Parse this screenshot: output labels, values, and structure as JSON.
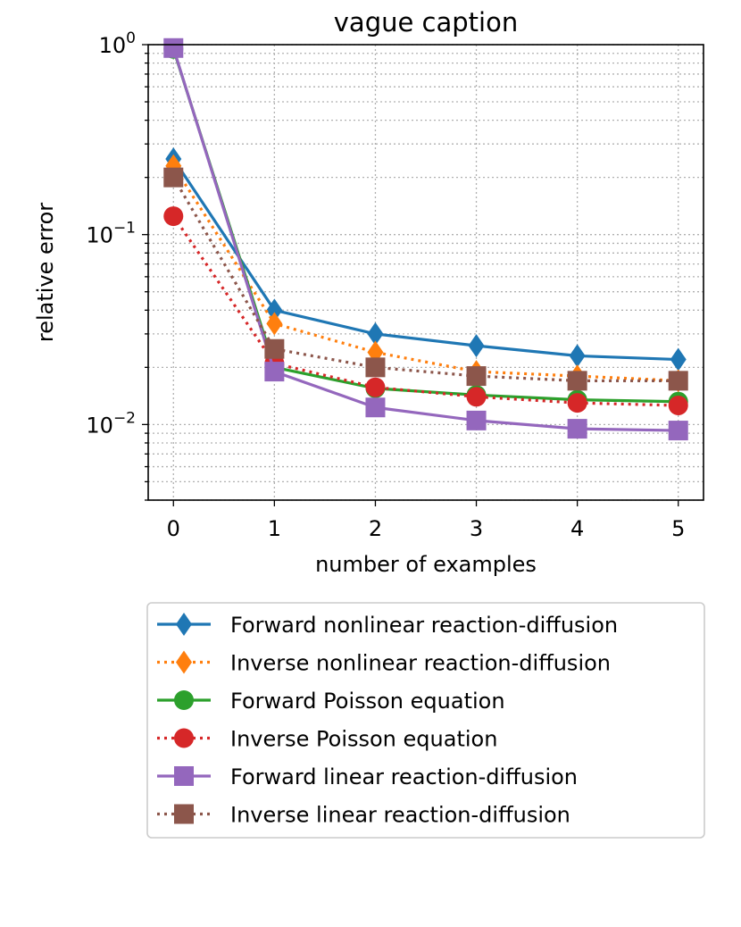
{
  "chart_data": {
    "type": "line",
    "title": "vague caption",
    "xlabel": "number of examples",
    "ylabel": "relative error",
    "x": [
      0,
      1,
      2,
      3,
      4,
      5
    ],
    "xlim": [
      -0.25,
      5.25
    ],
    "ylim": [
      0.004,
      1.0
    ],
    "yscale": "log",
    "x_tick_labels": [
      "0",
      "1",
      "2",
      "3",
      "4",
      "5"
    ],
    "y_ticks": [
      {
        "value": 0.01,
        "base": "10",
        "exp": "−2"
      },
      {
        "value": 0.1,
        "base": "10",
        "exp": "−1"
      },
      {
        "value": 1,
        "base": "10",
        "exp": "0"
      }
    ],
    "grid": true,
    "legend_position": "below plot",
    "series": [
      {
        "name": "Forward nonlinear reaction-diffusion",
        "values": [
          0.25,
          0.04,
          0.03,
          0.026,
          0.023,
          0.022
        ],
        "color": "#1f77b4",
        "linestyle": "solid",
        "marker": "diamond"
      },
      {
        "name": "Inverse nonlinear reaction-diffusion",
        "values": [
          0.23,
          0.034,
          0.024,
          0.019,
          0.018,
          0.017
        ],
        "color": "#ff7f0e",
        "linestyle": "dotted",
        "marker": "diamond"
      },
      {
        "name": "Forward Poisson equation",
        "values": [
          0.95,
          0.02,
          0.0155,
          0.0143,
          0.0135,
          0.0132
        ],
        "color": "#2ca02c",
        "linestyle": "solid",
        "marker": "circle"
      },
      {
        "name": "Inverse Poisson equation",
        "values": [
          0.125,
          0.021,
          0.0157,
          0.014,
          0.013,
          0.0126
        ],
        "color": "#d62728",
        "linestyle": "dotted",
        "marker": "circle"
      },
      {
        "name": "Forward linear reaction-diffusion",
        "values": [
          0.96,
          0.019,
          0.0123,
          0.0105,
          0.0095,
          0.0093
        ],
        "color": "#9467bd",
        "linestyle": "solid",
        "marker": "square"
      },
      {
        "name": "Inverse linear reaction-diffusion",
        "values": [
          0.2,
          0.025,
          0.02,
          0.018,
          0.017,
          0.017
        ],
        "color": "#8c564b",
        "linestyle": "dotted",
        "marker": "square"
      }
    ]
  }
}
